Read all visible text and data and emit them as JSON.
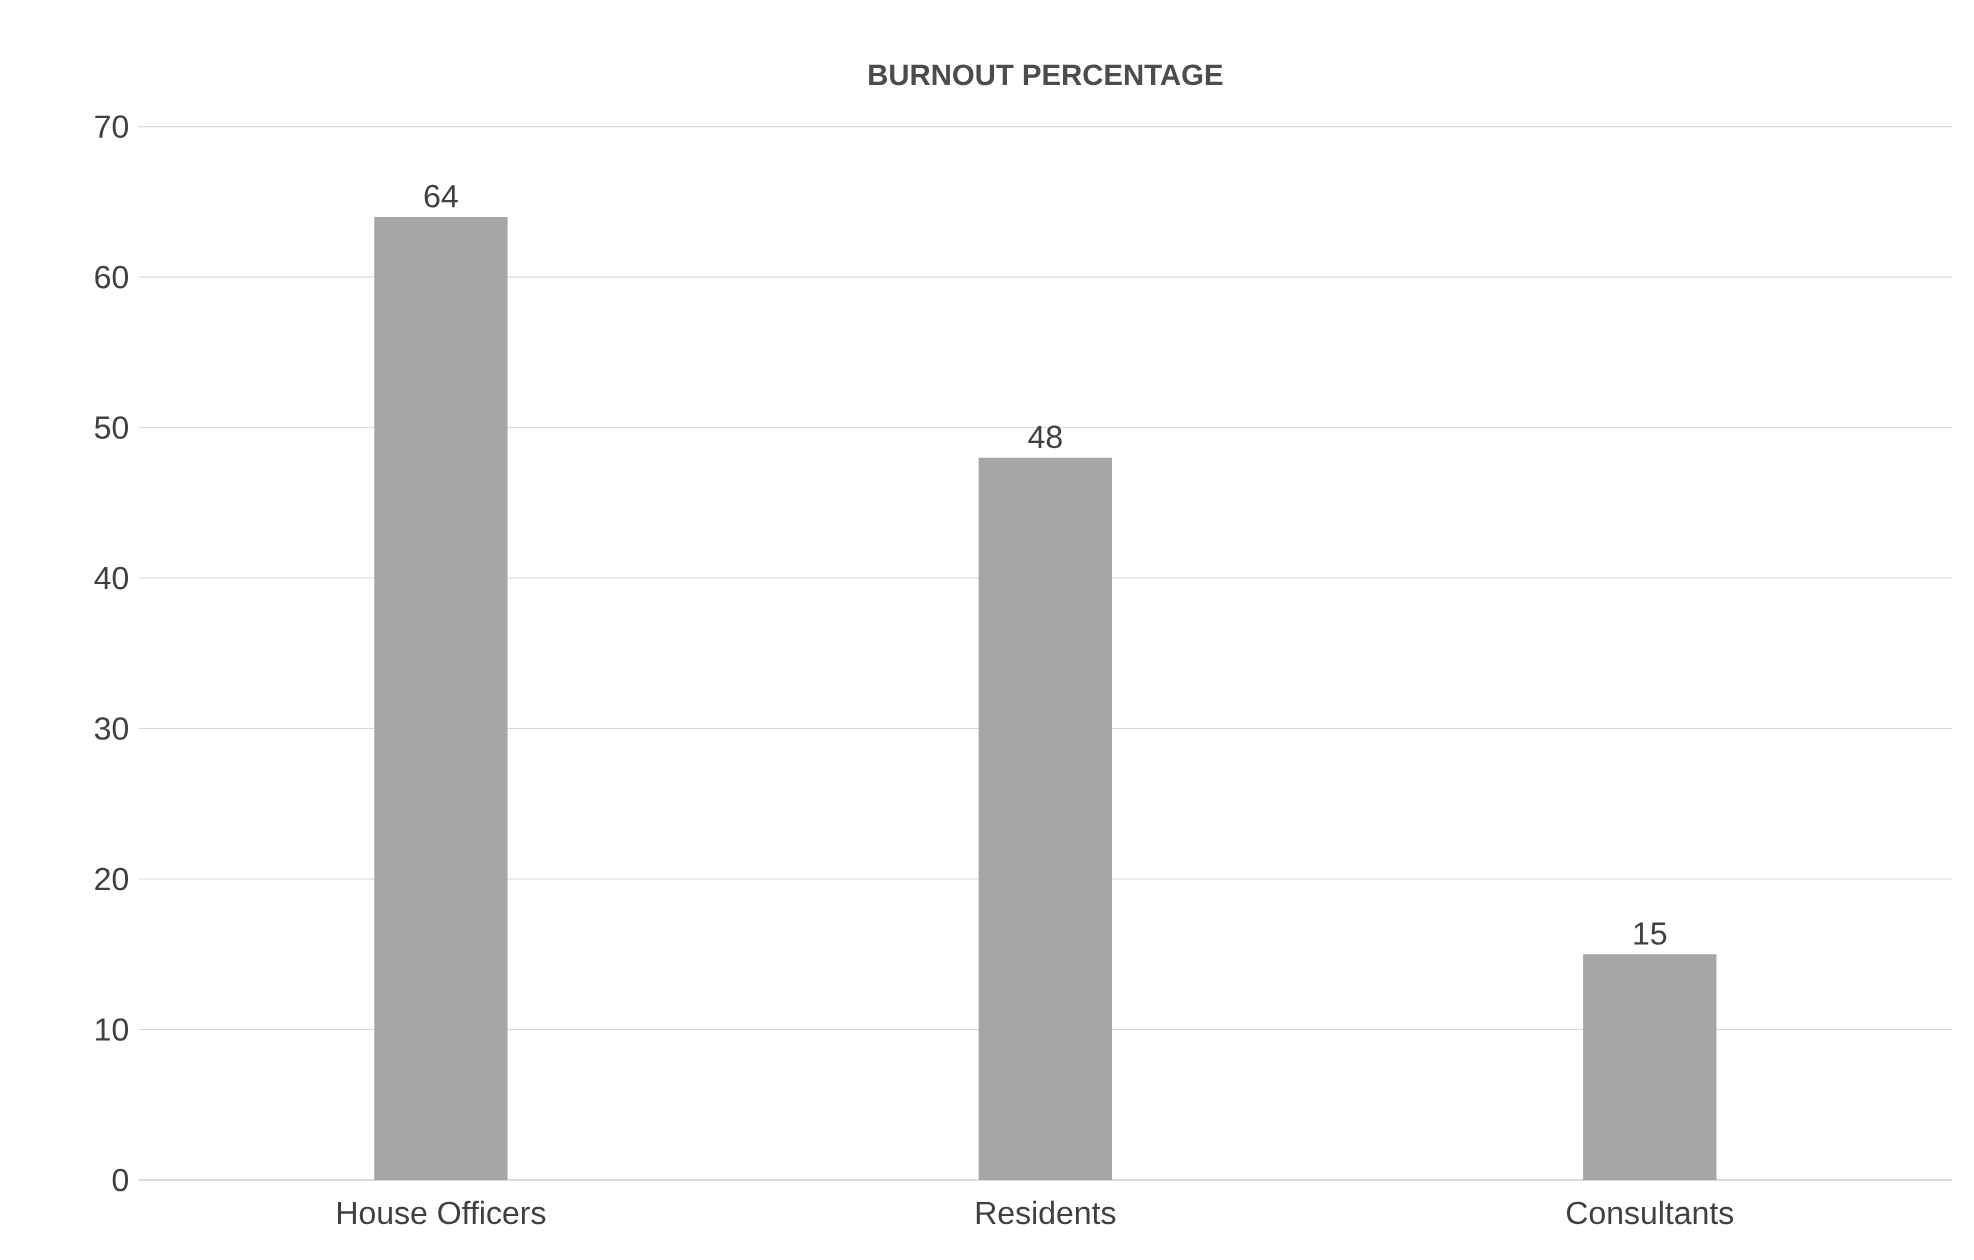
{
  "chart_data": {
    "type": "bar",
    "title": "BURNOUT PERCENTAGE",
    "categories": [
      "House Officers",
      "Residents",
      "Consultants"
    ],
    "values": [
      64,
      48,
      15
    ],
    "color": "#a6a6a6",
    "ylim": [
      0,
      70
    ],
    "yticks": [
      0,
      10,
      20,
      30,
      40,
      50,
      60,
      70
    ],
    "grid": "y",
    "data_labels": true
  }
}
